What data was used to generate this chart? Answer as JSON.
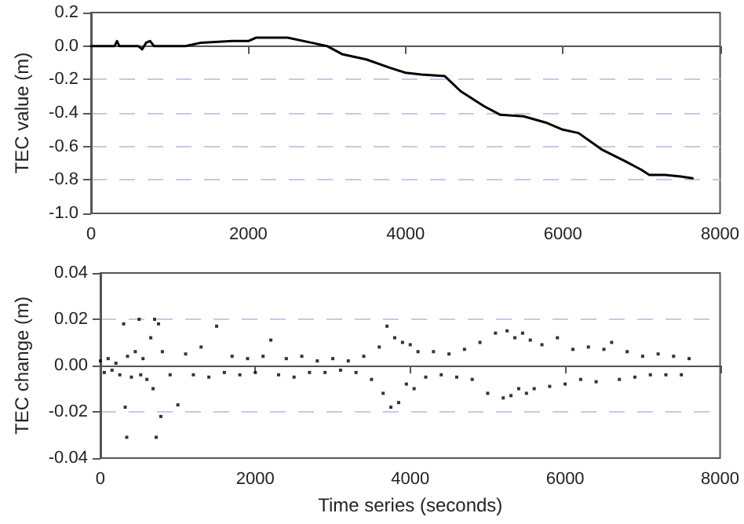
{
  "chart_data": [
    {
      "type": "line",
      "ylabel": "TEC value (m)",
      "grid": "y",
      "marker": "none",
      "line_style": "solid",
      "xlim": [
        0,
        8000
      ],
      "xticks": [
        0,
        2000,
        4000,
        6000,
        8000
      ],
      "ylim": [
        -1.0,
        0.2
      ],
      "yticks": [
        {
          "value": -1.0,
          "label": "-1.0"
        },
        -0.8,
        -0.6,
        -0.4,
        -0.2,
        {
          "value": 0,
          "label": "0.0"
        },
        0.2
      ],
      "x": [
        0,
        300,
        330,
        360,
        600,
        650,
        700,
        750,
        800,
        1000,
        1200,
        1400,
        1800,
        2000,
        2100,
        2500,
        2800,
        3000,
        3200,
        3500,
        3800,
        4000,
        4200,
        4500,
        4700,
        5000,
        5200,
        5500,
        5800,
        6000,
        6200,
        6500,
        6800,
        7000,
        7100,
        7300,
        7500,
        7650
      ],
      "series": [
        {
          "color": "#000000",
          "values": [
            0,
            0,
            0.03,
            0,
            0,
            -0.02,
            0.02,
            0.03,
            0,
            0,
            0,
            0.02,
            0.03,
            0.03,
            0.05,
            0.05,
            0.02,
            0,
            -0.05,
            -0.08,
            -0.13,
            -0.16,
            -0.17,
            -0.18,
            -0.27,
            -0.36,
            -0.41,
            -0.42,
            -0.46,
            -0.5,
            -0.52,
            -0.62,
            -0.69,
            -0.74,
            -0.77,
            -0.77,
            -0.78,
            -0.79
          ]
        }
      ]
    },
    {
      "type": "scatter",
      "xlabel": "Time series (seconds)",
      "ylabel": "TEC change (m)",
      "grid": "y",
      "marker": "square",
      "xlim": [
        0,
        8000
      ],
      "xticks": [
        0,
        2000,
        4000,
        6000,
        8000
      ],
      "ylim": [
        -0.04,
        0.04
      ],
      "yticks": [
        {
          "value": -0.04,
          "label": "-0.04"
        },
        {
          "value": -0.02,
          "label": "-0.02"
        },
        {
          "value": 0,
          "label": "0.00"
        },
        0.02,
        0.04
      ],
      "x": [
        0,
        50,
        100,
        150,
        200,
        250,
        300,
        320,
        340,
        350,
        400,
        450,
        500,
        520,
        550,
        600,
        650,
        680,
        700,
        720,
        750,
        780,
        800,
        900,
        1000,
        1100,
        1200,
        1300,
        1400,
        1500,
        1600,
        1700,
        1800,
        1900,
        2000,
        2100,
        2200,
        2300,
        2400,
        2500,
        2600,
        2700,
        2800,
        2900,
        3000,
        3100,
        3200,
        3300,
        3400,
        3500,
        3600,
        3650,
        3700,
        3750,
        3800,
        3850,
        3900,
        3950,
        4000,
        4050,
        4100,
        4200,
        4300,
        4400,
        4500,
        4600,
        4700,
        4800,
        4900,
        5000,
        5100,
        5200,
        5250,
        5300,
        5350,
        5400,
        5450,
        5500,
        5550,
        5600,
        5700,
        5800,
        5900,
        6000,
        6100,
        6200,
        6300,
        6400,
        6500,
        6600,
        6700,
        6800,
        6900,
        7000,
        7100,
        7200,
        7300,
        7400,
        7500,
        7600
      ],
      "series": [
        {
          "color": "#000000",
          "values": [
            0.002,
            -0.003,
            0.003,
            -0.002,
            0.001,
            -0.004,
            0.018,
            -0.018,
            -0.031,
            0.004,
            -0.005,
            0.006,
            0.02,
            -0.004,
            0.003,
            -0.006,
            0.012,
            -0.01,
            0.02,
            -0.031,
            0.018,
            -0.022,
            0.006,
            -0.004,
            -0.017,
            0.005,
            -0.004,
            0.008,
            -0.005,
            0.017,
            -0.003,
            0.004,
            -0.004,
            0.003,
            -0.003,
            0.004,
            0.011,
            -0.004,
            0.003,
            -0.005,
            0.004,
            -0.003,
            0.002,
            -0.003,
            0.003,
            -0.002,
            0.002,
            -0.003,
            0.004,
            -0.006,
            0.008,
            -0.012,
            0.017,
            -0.018,
            0.012,
            -0.016,
            0.01,
            -0.008,
            0.009,
            -0.01,
            0.006,
            -0.005,
            0.006,
            -0.004,
            0.005,
            -0.005,
            0.007,
            -0.006,
            0.01,
            -0.012,
            0.014,
            -0.014,
            0.015,
            -0.013,
            0.012,
            -0.01,
            0.014,
            -0.012,
            0.011,
            -0.01,
            0.009,
            -0.009,
            0.012,
            -0.008,
            0.007,
            -0.006,
            0.008,
            -0.007,
            0.007,
            0.01,
            -0.006,
            0.006,
            -0.005,
            0.004,
            -0.004,
            0.005,
            -0.004,
            0.004,
            -0.004,
            0.003
          ]
        }
      ]
    }
  ]
}
